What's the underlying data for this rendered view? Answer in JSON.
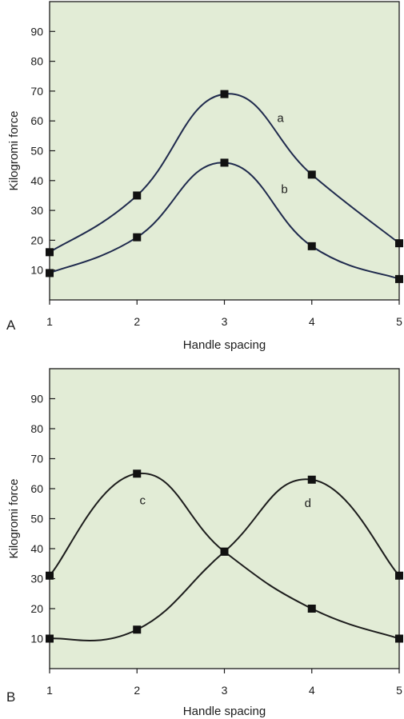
{
  "chart_data": [
    {
      "type": "line",
      "panel_label": "A",
      "xlabel": "Handle spacing",
      "ylabel": "Kilogromi force",
      "xlim": [
        1,
        5
      ],
      "ylim": [
        0,
        100
      ],
      "x_ticks": [
        "1",
        "2",
        "3",
        "4",
        "5"
      ],
      "y_ticks": [
        "10",
        "20",
        "30",
        "40",
        "50",
        "60",
        "70",
        "80",
        "90"
      ],
      "grid": false,
      "background_color": "#e2ecd6",
      "line_color": "#1f2a4d",
      "series": [
        {
          "name": "a",
          "x": [
            1,
            2,
            3,
            4,
            5
          ],
          "y": [
            16,
            35,
            69,
            42,
            19
          ]
        },
        {
          "name": "b",
          "x": [
            1,
            2,
            3,
            4,
            5
          ],
          "y": [
            9,
            21,
            46,
            18,
            7
          ]
        }
      ]
    },
    {
      "type": "line",
      "panel_label": "B",
      "xlabel": "Handle spacing",
      "ylabel": "Kilogromi force",
      "xlim": [
        1,
        5
      ],
      "ylim": [
        0,
        100
      ],
      "x_ticks": [
        "1",
        "2",
        "3",
        "4",
        "5"
      ],
      "y_ticks": [
        "10",
        "20",
        "30",
        "40",
        "50",
        "60",
        "70",
        "80",
        "90"
      ],
      "grid": false,
      "background_color": "#e2ecd6",
      "line_color": "#1c1c1c",
      "series": [
        {
          "name": "c",
          "x": [
            1,
            2,
            3,
            4,
            5
          ],
          "y": [
            31,
            65,
            39,
            20,
            10
          ]
        },
        {
          "name": "d",
          "x": [
            1,
            2,
            3,
            4,
            5
          ],
          "y": [
            10,
            13,
            39,
            63,
            31
          ]
        }
      ]
    }
  ]
}
